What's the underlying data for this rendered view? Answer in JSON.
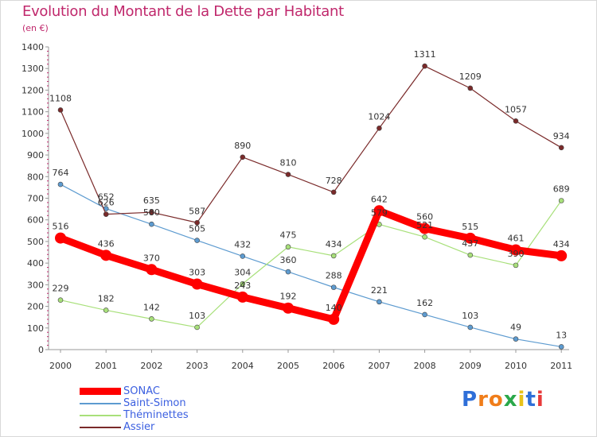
{
  "title": "Evolution du Montant de la Dette par Habitant",
  "subtitle": "(en €)",
  "logo": {
    "letters": [
      "P",
      "r",
      "o",
      "x",
      "i",
      "t",
      "i"
    ],
    "colors": [
      "#2f6fd8",
      "#f07d1a",
      "#f07d1a",
      "#2aa84a",
      "#e8c21a",
      "#2f6fd8",
      "#e83a3a"
    ]
  },
  "chart_data": {
    "type": "line",
    "categories": [
      "2000",
      "2001",
      "2002",
      "2003",
      "2004",
      "2005",
      "2006",
      "2007",
      "2008",
      "2009",
      "2010",
      "2011"
    ],
    "ylim": [
      0,
      1400
    ],
    "yticks": [
      "0",
      "100",
      "200",
      "300",
      "400",
      "500",
      "600",
      "700",
      "800",
      "900",
      "1000",
      "1100",
      "1200",
      "1300",
      "1400"
    ],
    "grid": false,
    "legend_position": "bottom-left",
    "series": [
      {
        "name": "SONAC",
        "color": "#ff0000",
        "emphasis": true,
        "values": [
          516,
          436,
          370,
          303,
          243,
          192,
          140,
          642,
          560,
          515,
          461,
          434
        ],
        "labels": [
          "516",
          "436",
          "370",
          "303",
          "243",
          "192",
          "140",
          "642",
          "560",
          "515",
          "461",
          "434"
        ]
      },
      {
        "name": "Saint-Simon",
        "color": "#5d9bd0",
        "emphasis": false,
        "values": [
          764,
          652,
          580,
          505,
          432,
          360,
          288,
          221,
          162,
          103,
          49,
          13
        ],
        "labels": [
          "764",
          "652",
          "580",
          "505",
          "432",
          "360",
          "288",
          "221",
          "162",
          "103",
          "49",
          "13"
        ]
      },
      {
        "name": "Théminettes",
        "color": "#a8e07a",
        "emphasis": false,
        "values": [
          229,
          182,
          142,
          103,
          304,
          475,
          434,
          579,
          521,
          437,
          390,
          689
        ],
        "labels": [
          "229",
          "182",
          "142",
          "103",
          "304",
          "475",
          "434",
          "579",
          "521",
          "437",
          "390",
          "689"
        ]
      },
      {
        "name": "Assier",
        "color": "#7a2a2a",
        "emphasis": false,
        "values": [
          1108,
          626,
          635,
          587,
          890,
          810,
          728,
          1024,
          1311,
          1209,
          1057,
          934
        ],
        "labels": [
          "1108",
          "626",
          "635",
          "587",
          "890",
          "810",
          "728",
          "1024",
          "1311",
          "1209",
          "1057",
          "934"
        ]
      }
    ]
  }
}
